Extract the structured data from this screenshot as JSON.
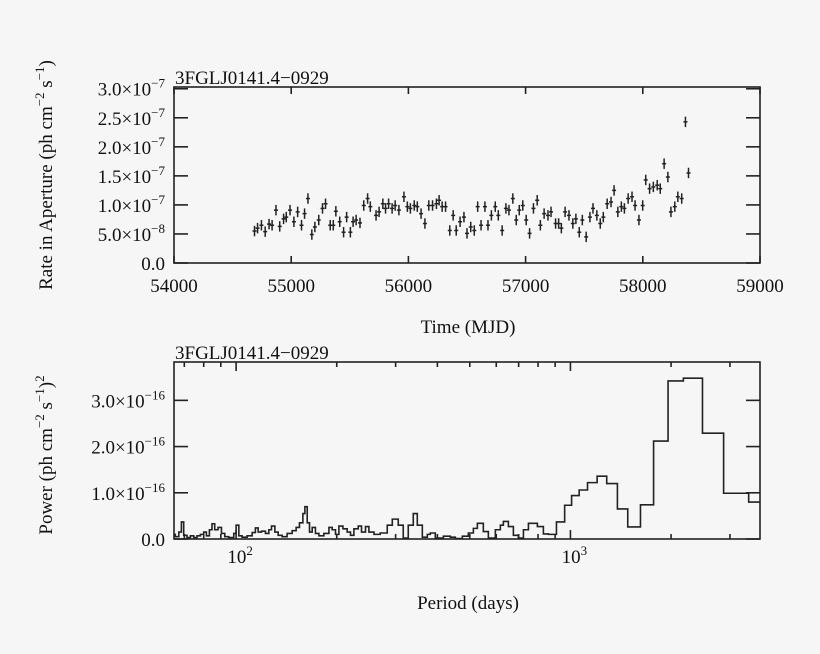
{
  "colors": {
    "background": "#f6f6f6",
    "ink": "#222222"
  },
  "chart_data": [
    {
      "type": "scatter",
      "title": "3FGLJ0141.4−0929",
      "xlabel": "Time (MJD)",
      "ylabel": {
        "text": "Rate in Aperture (ph cm",
        "sup1": "−2",
        "mid": " s",
        "sup2": "−1",
        "end": ")"
      },
      "xlim": [
        54000,
        59000
      ],
      "ylim": [
        0,
        3.03e-07
      ],
      "grid": false,
      "error_bars": true,
      "x_ticks": [
        {
          "value": 54000,
          "label": "54000"
        },
        {
          "value": 55000,
          "label": "55000"
        },
        {
          "value": 56000,
          "label": "56000"
        },
        {
          "value": 57000,
          "label": "57000"
        },
        {
          "value": 58000,
          "label": "58000"
        },
        {
          "value": 59000,
          "label": "59000"
        }
      ],
      "y_ticks": [
        {
          "value": 0,
          "label": "0.0",
          "exp": ""
        },
        {
          "value": 5e-08,
          "label": "5.0×10",
          "exp": "−8"
        },
        {
          "value": 1e-07,
          "label": "1.0×10",
          "exp": "−7"
        },
        {
          "value": 1.5e-07,
          "label": "1.5×10",
          "exp": "−7"
        },
        {
          "value": 2e-07,
          "label": "2.0×10",
          "exp": "−7"
        },
        {
          "value": 2.5e-07,
          "label": "2.5×10",
          "exp": "−7"
        },
        {
          "value": 3e-07,
          "label": "3.0×10",
          "exp": "−7"
        }
      ],
      "y_err": 9e-09,
      "x": [
        54687,
        54713,
        54746,
        54778,
        54811,
        54837,
        54870,
        54902,
        54935,
        54958,
        54990,
        55023,
        55055,
        55088,
        55114,
        55143,
        55176,
        55202,
        55235,
        55267,
        55293,
        55333,
        55359,
        55381,
        55414,
        55447,
        55473,
        55505,
        55528,
        55554,
        55587,
        55619,
        55652,
        55675,
        55724,
        55750,
        55782,
        55805,
        55831,
        55861,
        55887,
        55919,
        55962,
        55991,
        56017,
        56050,
        56076,
        56108,
        56141,
        56174,
        56206,
        56239,
        56262,
        56288,
        56317,
        56353,
        56382,
        56408,
        56441,
        56474,
        56500,
        56532,
        56562,
        56591,
        56620,
        56653,
        56679,
        56708,
        56741,
        56767,
        56800,
        56832,
        56858,
        56891,
        56920,
        56946,
        56976,
        57005,
        57034,
        57067,
        57099,
        57126,
        57158,
        57191,
        57217,
        57256,
        57282,
        57305,
        57337,
        57370,
        57403,
        57429,
        57458,
        57484,
        57517,
        57549,
        57575,
        57608,
        57637,
        57663,
        57696,
        57729,
        57755,
        57787,
        57817,
        57843,
        57875,
        57908,
        57934,
        57967,
        57999,
        58025,
        58058,
        58090,
        58123,
        58149,
        58182,
        58214,
        58240,
        58273,
        58299,
        58332,
        58364,
        58390
      ],
      "y": [
        5.5e-08,
        6e-08,
        6.5e-08,
        5.4e-08,
        6.7e-08,
        6.5e-08,
        9.1e-08,
        6.3e-08,
        7.6e-08,
        7.9e-08,
        9.1e-08,
        7.1e-08,
        8.8e-08,
        6.5e-08,
        8.5e-08,
        1.11e-07,
        4.9e-08,
        6.2e-08,
        7.4e-08,
        9.4e-08,
        1.02e-07,
        6.5e-08,
        6.5e-08,
        8.9e-08,
        7.1e-08,
        5.3e-08,
        7.9e-08,
        5.3e-08,
        7.1e-08,
        7.4e-08,
        6.9e-08,
        9.9e-08,
        1.11e-07,
        9.7e-08,
        8.2e-08,
        8.8e-08,
        1.02e-07,
        9.4e-08,
        1.02e-07,
        9.4e-08,
        9.9e-08,
        9.1e-08,
        1.14e-07,
        9.7e-08,
        9.4e-08,
        9.9e-08,
        9.7e-08,
        8.5e-08,
        6.8e-08,
        9.9e-08,
        9.9e-08,
        1.02e-07,
        1.08e-07,
        9.7e-08,
        9.7e-08,
        5.6e-08,
        8.2e-08,
        5.6e-08,
        7.1e-08,
        7.9e-08,
        5.1e-08,
        6.2e-08,
        5.6e-08,
        9.7e-08,
        6.5e-08,
        9.7e-08,
        6.5e-08,
        8.2e-08,
        9.7e-08,
        8.2e-08,
        5.6e-08,
        9.4e-08,
        9.1e-08,
        1.11e-07,
        7.4e-08,
        9.1e-08,
        9.9e-08,
        7.4e-08,
        5.1e-08,
        9.4e-08,
        1.08e-07,
        6.5e-08,
        8.5e-08,
        8.2e-08,
        8.8e-08,
        6.8e-08,
        6.8e-08,
        6e-08,
        8.8e-08,
        8.2e-08,
        6.8e-08,
        7.6e-08,
        5.3e-08,
        7.4e-08,
        4.5e-08,
        7.9e-08,
        9.4e-08,
        8.2e-08,
        6.8e-08,
        7.9e-08,
        1.02e-07,
        1.05e-07,
        1.25e-07,
        8.8e-08,
        9.7e-08,
        9.4e-08,
        1.11e-07,
        1.14e-07,
        9.9e-08,
        7.4e-08,
        9.9e-08,
        1.43e-07,
        1.28e-07,
        1.31e-07,
        1.34e-07,
        1.28e-07,
        1.71e-07,
        1.48e-07,
        8.8e-08,
        9.7e-08,
        1.14e-07,
        1.11e-07,
        2.43e-07,
        1.55e-07
      ]
    },
    {
      "type": "line",
      "style": "step",
      "title": "3FGLJ0141.4−0929",
      "xlabel": "Period (days)",
      "ylabel": {
        "text": "Power (ph cm",
        "sup1": "−2",
        "mid": " s",
        "sup2": "−1",
        "end": ")",
        "sup3": "2"
      },
      "x_scale": "log",
      "xlim": [
        65.2,
        3690
      ],
      "ylim": [
        0,
        3.83e-16
      ],
      "grid": false,
      "x_ticks": [
        {
          "value": 100,
          "label": "10",
          "exp": "2"
        },
        {
          "value": 1000,
          "label": "10",
          "exp": "3"
        }
      ],
      "y_ticks": [
        {
          "value": 0,
          "label": "0.0",
          "exp": ""
        },
        {
          "value": 1e-16,
          "label": "1.0×10",
          "exp": "−16"
        },
        {
          "value": 2e-16,
          "label": "2.0×10",
          "exp": "−16"
        },
        {
          "value": 3e-16,
          "label": "3.0×10",
          "exp": "−16"
        }
      ],
      "period_bin_edges": [
        65.2,
        65.8,
        67.4,
        68.6,
        69.7,
        71.3,
        73.0,
        74.7,
        76.4,
        78.2,
        80.0,
        81.5,
        83.2,
        84.7,
        86.3,
        88.3,
        90.4,
        92.5,
        95.1,
        98.4,
        100,
        101.9,
        104.2,
        107.9,
        111.7,
        114.2,
        116.4,
        119.1,
        122.4,
        125.3,
        127.6,
        130.6,
        133.6,
        137.3,
        142.1,
        147.1,
        151.2,
        154.7,
        158.4,
        160.6,
        163.2,
        165.8,
        168.9,
        172.7,
        176.9,
        183.0,
        189.5,
        193.8,
        198.3,
        203.0,
        208.7,
        214.9,
        219.9,
        225.1,
        231.9,
        237.2,
        243.8,
        249.6,
        258.5,
        269.8,
        283.2,
        293.2,
        305.5,
        316.2,
        327.3,
        338.8,
        348.3,
        360.6,
        373.2,
        380.9,
        394.3,
        416.8,
        437.3,
        452.6,
        475.0,
        495.1,
        512.5,
        526.8,
        548.9,
        568.2,
        596.3,
        617.2,
        630.1,
        652.3,
        675.1,
        698.9,
        723.5,
        748.8,
        796.4,
        830.1,
        859.4,
        908.2,
        961,
        1008,
        1062,
        1125,
        1202,
        1284,
        1382,
        1484,
        1620,
        1773,
        1959,
        2177,
        2483,
        2872,
        3413,
        3690
      ],
      "power": [
        1e-17,
        5e-18,
        1.5e-17,
        3.7e-17,
        8e-18,
        3e-18,
        7e-18,
        3e-18,
        7e-18,
        1e-17,
        1.5e-17,
        7e-18,
        2e-17,
        3.3e-17,
        2e-17,
        2.5e-17,
        1.2e-17,
        5e-18,
        3e-18,
        1.2e-17,
        3e-17,
        7e-18,
        4e-18,
        7e-18,
        1.4e-17,
        2.4e-17,
        1.5e-17,
        1.7e-17,
        1.2e-17,
        2e-17,
        2.8e-17,
        1.5e-17,
        8e-18,
        5e-18,
        1.2e-17,
        1.8e-17,
        2.5e-17,
        3.5e-17,
        5.5e-17,
        7e-17,
        3.5e-17,
        1.5e-17,
        2.5e-17,
        1.2e-17,
        7e-18,
        1.2e-17,
        2.5e-17,
        2e-17,
        1e-17,
        2.8e-17,
        2.2e-17,
        1.5e-17,
        8e-18,
        2.2e-17,
        2.8e-17,
        1.5e-17,
        2.7e-17,
        1.5e-17,
        1e-17,
        1.3e-17,
        3e-17,
        4.3e-17,
        3e-17,
        2e-18,
        3e-17,
        5.5e-17,
        3e-17,
        4e-18,
        1e-17,
        1.3e-17,
        2e-18,
        6e-18,
        4e-18,
        1e-18,
        6e-18,
        1.3e-17,
        2.3e-17,
        3.4e-17,
        1.6e-17,
        2e-18,
        2e-17,
        3e-17,
        3.8e-17,
        2.7e-17,
        8e-18,
        2e-18,
        2e-17,
        3.4e-17,
        2.7e-17,
        1.1e-17,
        1e-17,
        3.7e-17,
        7.3e-17,
        9.4e-17,
        1.06e-16,
        1.22e-16,
        1.36e-16,
        1.2e-16,
        6.5e-17,
        2.6e-17,
        7.4e-17,
        2.12e-16,
        3.42e-16,
        3.48e-16,
        2.29e-16,
        9.9e-17,
        8e-17
      ]
    }
  ]
}
